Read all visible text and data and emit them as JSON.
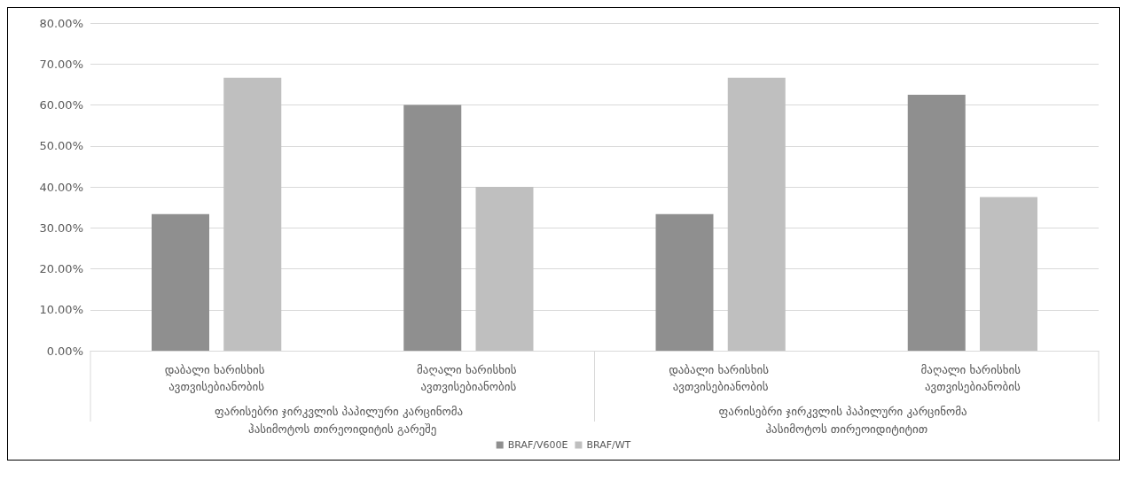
{
  "chart_data": {
    "type": "bar",
    "categories": [
      "დაბალი ხარისხის ავთვისებიანობის",
      "მაღალი ხარისხის ავთვისებიანობის",
      "დაბალი ხარისხის ავთვისებიანობის",
      "მაღალი ხარისხის ავთვისებიანობის"
    ],
    "series": [
      {
        "name": "BRAF/V600E",
        "color": "#8f8f8f",
        "values": [
          33.33,
          60.0,
          33.33,
          62.5
        ]
      },
      {
        "name": "BRAF/WT",
        "color": "#bfbfbf",
        "values": [
          66.67,
          40.0,
          66.67,
          37.5
        ]
      }
    ],
    "ylim": [
      0,
      80
    ],
    "yticks": [
      {
        "value": 0,
        "label": "0.00%"
      },
      {
        "value": 10,
        "label": "10.00%"
      },
      {
        "value": 20,
        "label": "20.00%"
      },
      {
        "value": 30,
        "label": "30.00%"
      },
      {
        "value": 40,
        "label": "40.00%"
      },
      {
        "value": 50,
        "label": "50.00%"
      },
      {
        "value": 60,
        "label": "60.00%"
      },
      {
        "value": 70,
        "label": "70.00%"
      },
      {
        "value": 80,
        "label": "80.00%"
      }
    ],
    "annotations": [
      "ფარისებრი ჯირკვლის პაპილური კარცინომა  ჰასიმოტოს თირეოიდიტის გარეშე",
      "ფარისებრი ჯირკვლის პაპილური კარცინომა  ჰასიმოტოს თირეოიდიტიტით"
    ],
    "grid": "y",
    "legend": "bottom"
  }
}
